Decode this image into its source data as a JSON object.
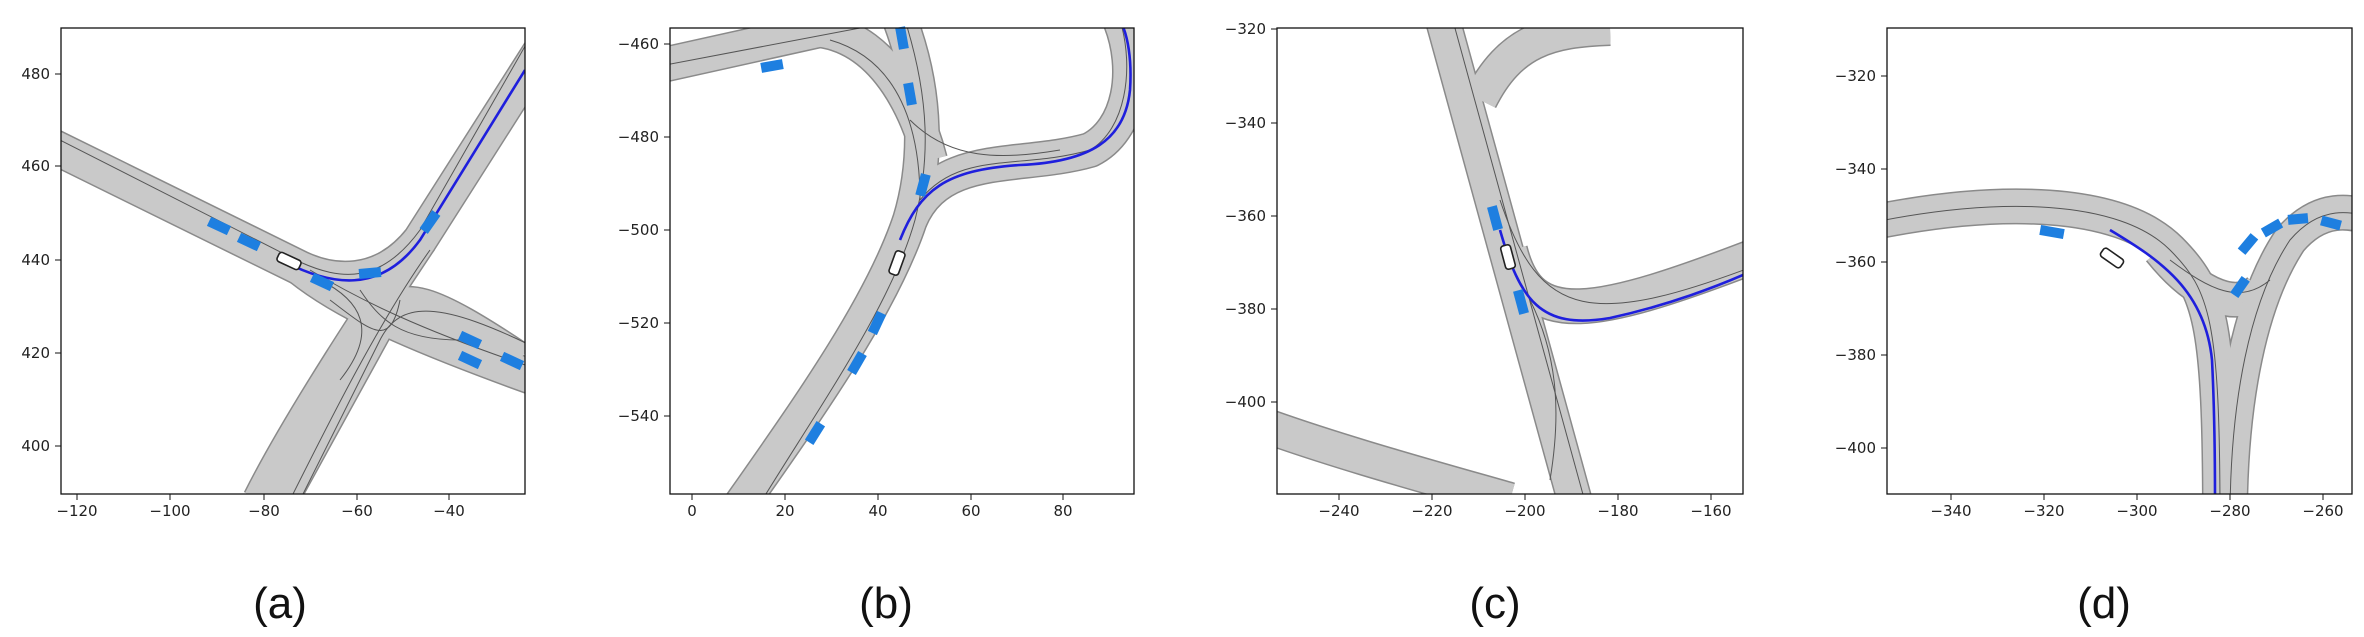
{
  "panels": [
    {
      "id": "a",
      "caption": "(a)",
      "x_ticks": [
        "−120",
        "−100",
        "−80",
        "−60",
        "−40"
      ],
      "y_ticks": [
        "480",
        "460",
        "440",
        "420",
        "400"
      ]
    },
    {
      "id": "b",
      "caption": "(b)",
      "x_ticks": [
        "0",
        "20",
        "40",
        "60",
        "80"
      ],
      "y_ticks": [
        "−460",
        "−480",
        "−500",
        "−520",
        "−540"
      ]
    },
    {
      "id": "c",
      "caption": "(c)",
      "x_ticks": [
        "−240",
        "−220",
        "−200",
        "−180",
        "−160"
      ],
      "y_ticks": [
        "−320",
        "−340",
        "−360",
        "−380",
        "−400"
      ]
    },
    {
      "id": "d",
      "caption": "(d)",
      "x_ticks": [
        "−340",
        "−320",
        "−300",
        "−280",
        "−260"
      ],
      "y_ticks": [
        "−320",
        "−340",
        "−360",
        "−380",
        "−400"
      ]
    }
  ],
  "colors": {
    "road": "#c9c9c9",
    "road_edge": "#8a8a8a",
    "trajectory": "#1f1fdd",
    "vehicle": "#1e7fe0",
    "ego": "#ffffff"
  }
}
